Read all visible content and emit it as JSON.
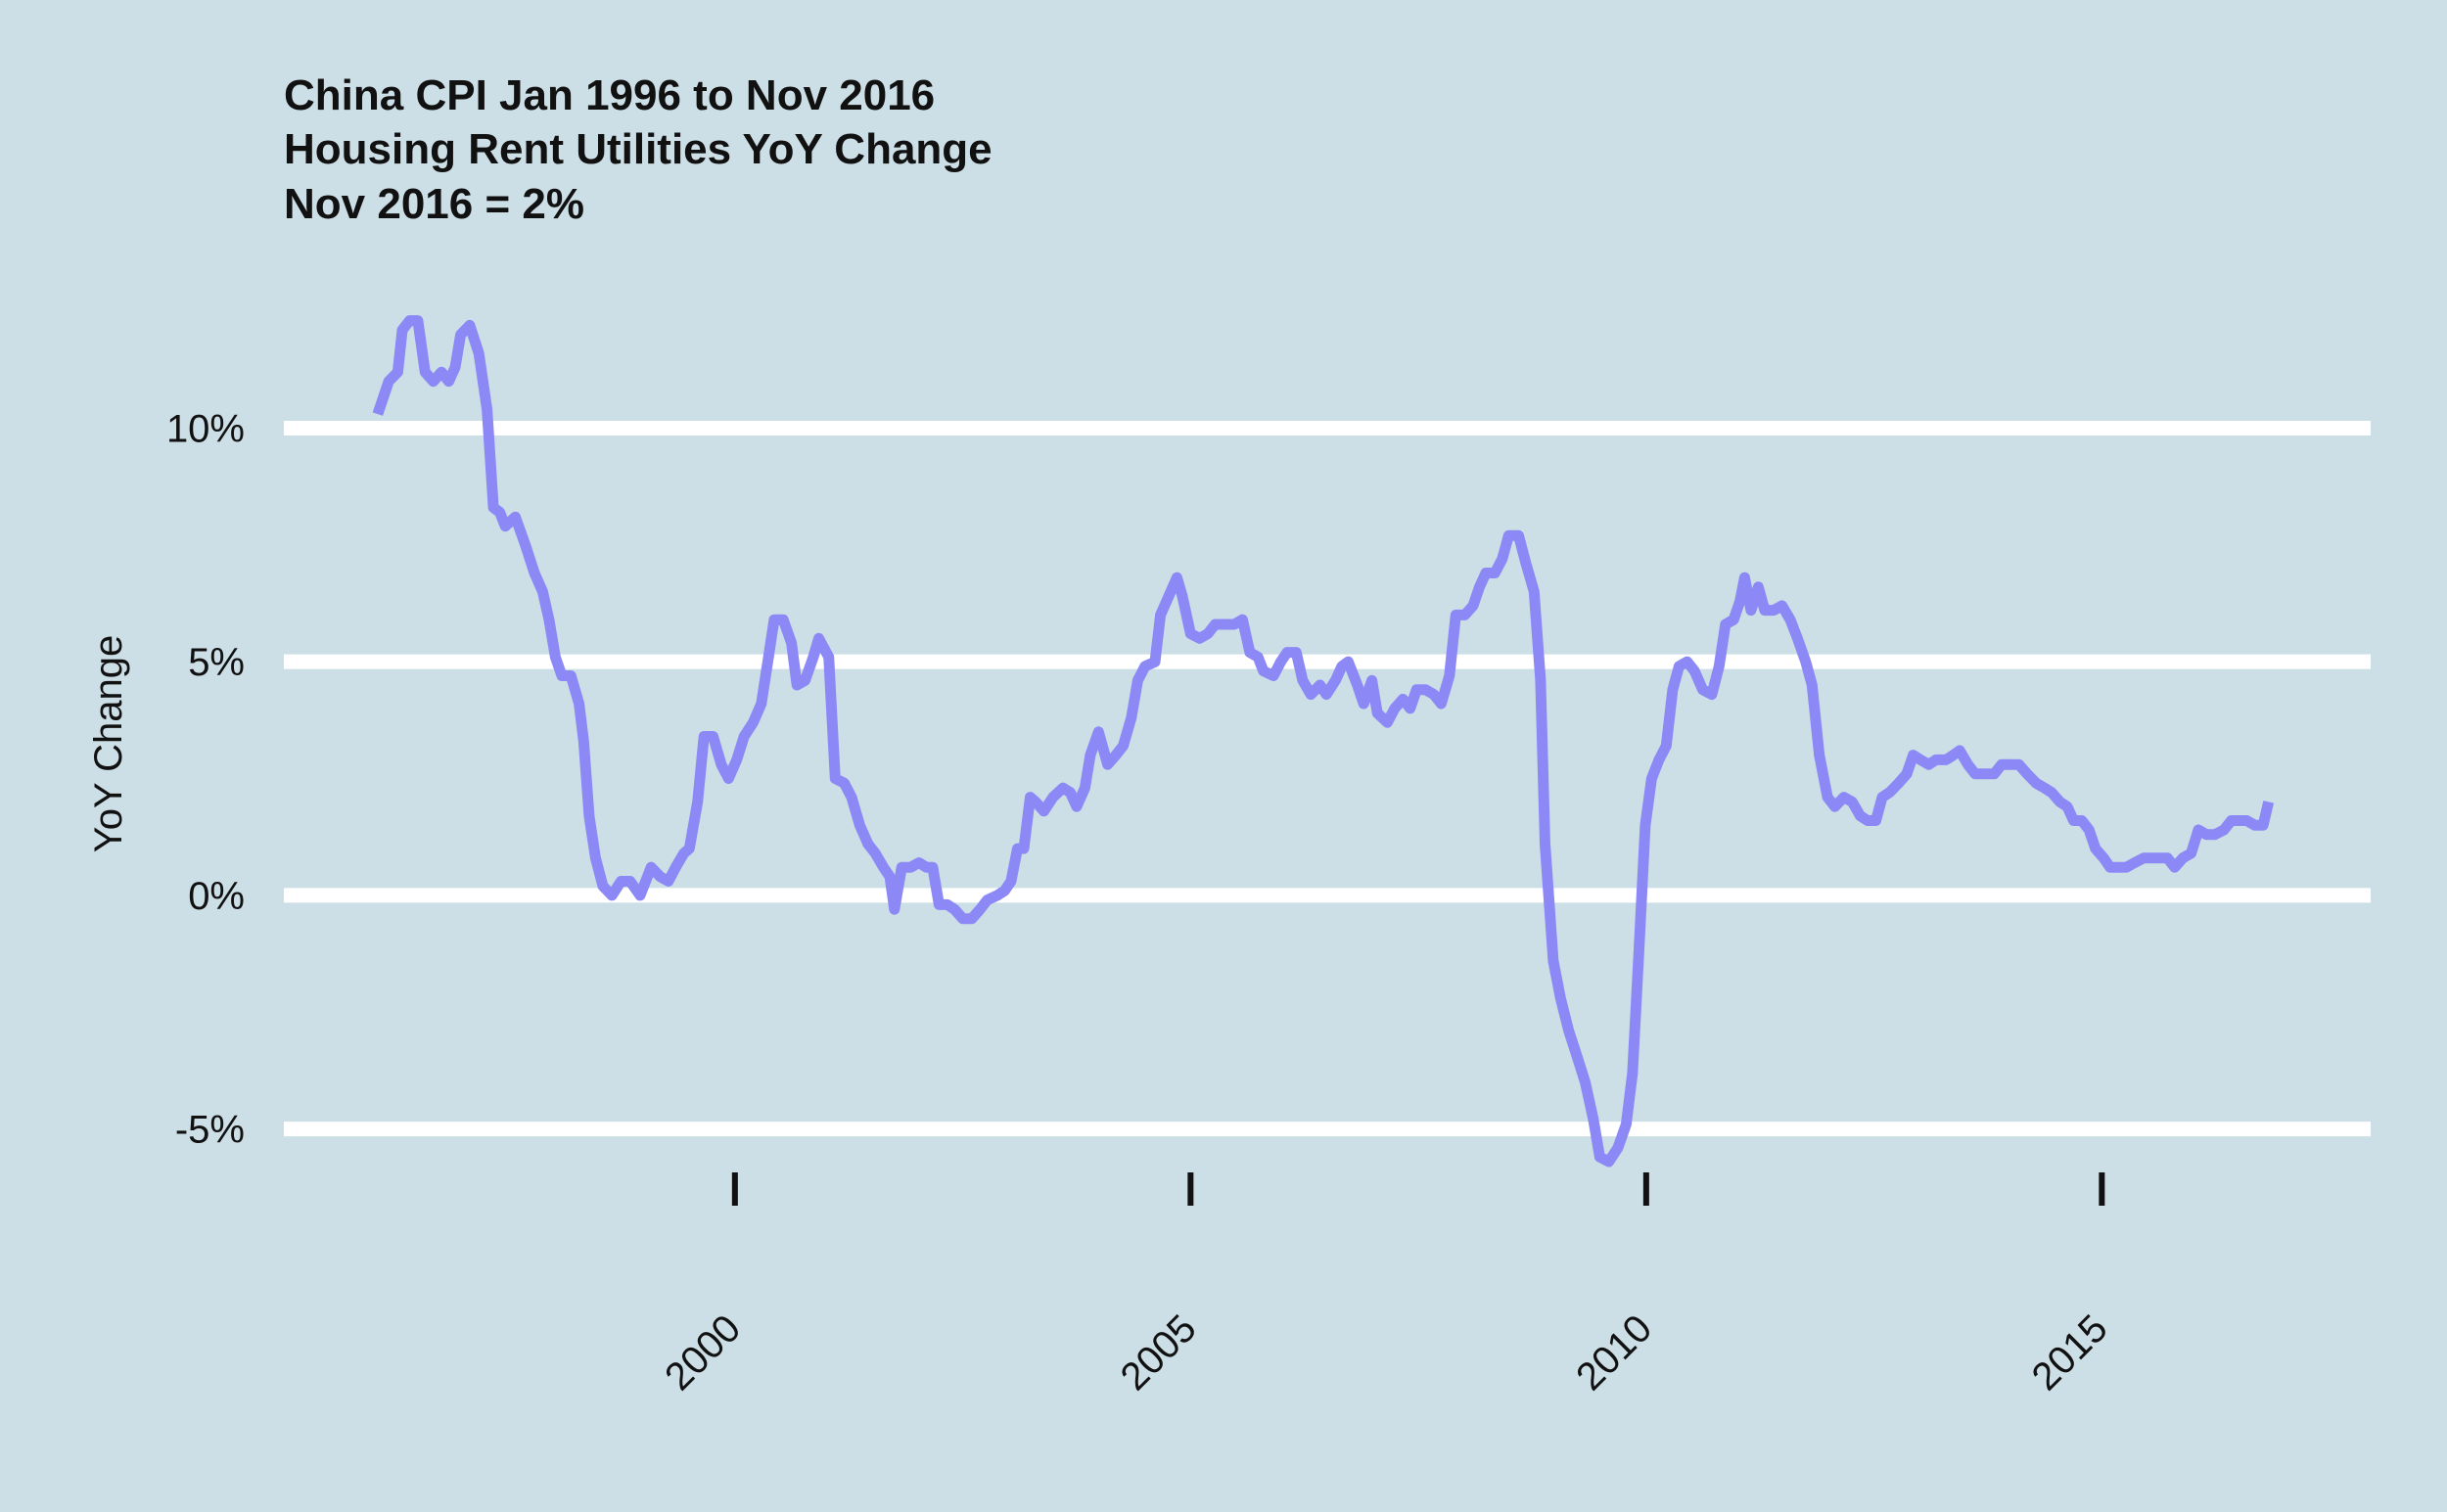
{
  "chart_data": {
    "type": "line",
    "title_lines": [
      "China CPI Jan 1996 to Nov 2016",
      "Housing Rent Utilities YoY Change",
      "Nov 2016 = 2%"
    ],
    "ylabel": "YoY Change",
    "xlim": [
      1995.05,
      2017.95
    ],
    "xticks": [
      2000,
      2005,
      2010,
      2015
    ],
    "ylim": [
      -5.7,
      12.9
    ],
    "yticks": [
      {
        "value": -5,
        "label": "-5%"
      },
      {
        "value": 0,
        "label": "0%"
      },
      {
        "value": 5,
        "label": "5%"
      },
      {
        "value": 10,
        "label": "10%"
      }
    ],
    "grid": true,
    "x": [
      1996.08,
      1996.2,
      1996.3,
      1996.35,
      1996.43,
      1996.52,
      1996.6,
      1996.69,
      1996.78,
      1996.86,
      1996.93,
      1996.99,
      1997.09,
      1997.19,
      1997.28,
      1997.35,
      1997.42,
      1997.48,
      1997.59,
      1997.7,
      1997.8,
      1997.89,
      1997.96,
      1998.03,
      1998.1,
      1998.2,
      1998.29,
      1998.34,
      1998.4,
      1998.47,
      1998.55,
      1998.65,
      1998.75,
      1998.85,
      1998.96,
      1999.08,
      1999.18,
      1999.27,
      1999.35,
      1999.44,
      1999.5,
      1999.59,
      1999.66,
      1999.76,
      1999.85,
      1999.93,
      2000.02,
      2000.1,
      2000.2,
      2000.29,
      2000.36,
      2000.43,
      2000.53,
      2000.62,
      2000.68,
      2000.77,
      2000.86,
      2000.92,
      2001.03,
      2001.1,
      2001.2,
      2001.28,
      2001.37,
      2001.46,
      2001.54,
      2001.63,
      2001.7,
      2001.75,
      2001.83,
      2001.93,
      2002.02,
      2002.1,
      2002.17,
      2002.24,
      2002.33,
      2002.41,
      2002.5,
      2002.6,
      2002.69,
      2002.77,
      2002.88,
      2002.96,
      2003.03,
      2003.1,
      2003.17,
      2003.24,
      2003.3,
      2003.39,
      2003.49,
      2003.6,
      2003.68,
      2003.75,
      2003.84,
      2003.9,
      2003.99,
      2004.09,
      2004.18,
      2004.26,
      2004.35,
      2004.42,
      2004.5,
      2004.61,
      2004.67,
      2004.76,
      2004.85,
      2004.91,
      2005.0,
      2005.1,
      2005.19,
      2005.27,
      2005.38,
      2005.48,
      2005.57,
      2005.65,
      2005.74,
      2005.8,
      2005.91,
      2005.99,
      2006.06,
      2006.16,
      2006.23,
      2006.32,
      2006.42,
      2006.49,
      2006.59,
      2006.66,
      2006.73,
      2006.83,
      2006.9,
      2006.99,
      2007.05,
      2007.16,
      2007.24,
      2007.33,
      2007.41,
      2007.48,
      2007.58,
      2007.67,
      2007.75,
      2007.84,
      2007.91,
      2008.01,
      2008.1,
      2008.17,
      2008.24,
      2008.34,
      2008.42,
      2008.49,
      2008.6,
      2008.68,
      2008.77,
      2008.84,
      2008.89,
      2008.98,
      2009.06,
      2009.15,
      2009.25,
      2009.33,
      2009.42,
      2009.49,
      2009.59,
      2009.69,
      2009.78,
      2009.85,
      2009.92,
      2009.99,
      2010.06,
      2010.14,
      2010.22,
      2010.29,
      2010.36,
      2010.45,
      2010.53,
      2010.62,
      2010.72,
      2010.8,
      2010.87,
      2010.96,
      2011.03,
      2011.08,
      2011.15,
      2011.23,
      2011.3,
      2011.4,
      2011.49,
      2011.58,
      2011.66,
      2011.75,
      2011.82,
      2011.9,
      2011.99,
      2012.07,
      2012.17,
      2012.26,
      2012.35,
      2012.43,
      2012.52,
      2012.59,
      2012.67,
      2012.77,
      2012.86,
      2012.93,
      2013.01,
      2013.1,
      2013.18,
      2013.29,
      2013.37,
      2013.44,
      2013.53,
      2013.61,
      2013.72,
      2013.82,
      2013.9,
      2013.99,
      2014.09,
      2014.18,
      2014.28,
      2014.37,
      2014.45,
      2014.54,
      2014.62,
      2014.69,
      2014.78,
      2014.86,
      2014.93,
      2015.02,
      2015.09,
      2015.17,
      2015.27,
      2015.36,
      2015.46,
      2015.55,
      2015.63,
      2015.72,
      2015.8,
      2015.89,
      2015.98,
      2016.06,
      2016.15,
      2016.24,
      2016.34,
      2016.42,
      2016.51,
      2016.59,
      2016.68,
      2016.77,
      2016.83
    ],
    "series": [
      {
        "color": "#8c89f6",
        "values": [
          10.3,
          11.0,
          11.2,
          12.1,
          12.3,
          12.3,
          11.2,
          11.0,
          11.2,
          11.0,
          11.3,
          12.0,
          12.2,
          11.6,
          10.4,
          8.3,
          8.2,
          7.9,
          8.1,
          7.5,
          6.9,
          6.5,
          5.9,
          5.1,
          4.7,
          4.7,
          4.1,
          3.3,
          1.7,
          0.8,
          0.2,
          0.0,
          0.3,
          0.3,
          0.0,
          0.6,
          0.4,
          0.3,
          0.6,
          0.9,
          1.0,
          2.0,
          3.4,
          3.4,
          2.8,
          2.5,
          2.9,
          3.4,
          3.7,
          4.1,
          5.0,
          5.9,
          5.9,
          5.4,
          4.5,
          4.6,
          5.1,
          5.5,
          5.1,
          2.5,
          2.4,
          2.1,
          1.5,
          1.1,
          0.9,
          0.6,
          0.4,
          -0.3,
          0.6,
          0.6,
          0.7,
          0.6,
          0.6,
          -0.2,
          -0.2,
          -0.3,
          -0.5,
          -0.5,
          -0.3,
          -0.1,
          0.0,
          0.1,
          0.3,
          1.0,
          1.0,
          2.1,
          2.0,
          1.8,
          2.1,
          2.3,
          2.2,
          1.9,
          2.3,
          3.0,
          3.5,
          2.8,
          3.0,
          3.2,
          3.8,
          4.6,
          4.9,
          5.0,
          6.0,
          6.4,
          6.8,
          6.4,
          5.6,
          5.5,
          5.6,
          5.8,
          5.8,
          5.8,
          5.9,
          5.2,
          5.1,
          4.8,
          4.7,
          5.0,
          5.2,
          5.2,
          4.6,
          4.3,
          4.5,
          4.3,
          4.6,
          4.9,
          5.0,
          4.5,
          4.1,
          4.6,
          3.9,
          3.7,
          4.0,
          4.2,
          4.0,
          4.4,
          4.4,
          4.3,
          4.1,
          4.7,
          6.0,
          6.0,
          6.2,
          6.6,
          6.9,
          6.9,
          7.2,
          7.7,
          7.7,
          7.1,
          6.5,
          4.6,
          1.1,
          -1.4,
          -2.2,
          -2.9,
          -3.5,
          -4.0,
          -4.8,
          -5.6,
          -5.7,
          -5.4,
          -4.9,
          -3.8,
          -1.2,
          1.5,
          2.5,
          2.9,
          3.2,
          4.4,
          4.9,
          5.0,
          4.8,
          4.4,
          4.3,
          4.9,
          5.8,
          5.9,
          6.3,
          6.8,
          6.1,
          6.6,
          6.1,
          6.1,
          6.2,
          5.9,
          5.5,
          5.0,
          4.5,
          3.0,
          2.1,
          1.9,
          2.1,
          2.0,
          1.7,
          1.6,
          1.6,
          2.1,
          2.2,
          2.4,
          2.6,
          3.0,
          2.9,
          2.8,
          2.9,
          2.9,
          3.0,
          3.1,
          2.8,
          2.6,
          2.6,
          2.6,
          2.8,
          2.8,
          2.8,
          2.6,
          2.4,
          2.3,
          2.2,
          2.0,
          1.9,
          1.6,
          1.6,
          1.4,
          1.0,
          0.8,
          0.6,
          0.6,
          0.6,
          0.7,
          0.8,
          0.8,
          0.8,
          0.8,
          0.6,
          0.8,
          0.9,
          1.4,
          1.3,
          1.3,
          1.4,
          1.6,
          1.6,
          1.6,
          1.5,
          1.5,
          2.0
        ]
      }
    ]
  }
}
